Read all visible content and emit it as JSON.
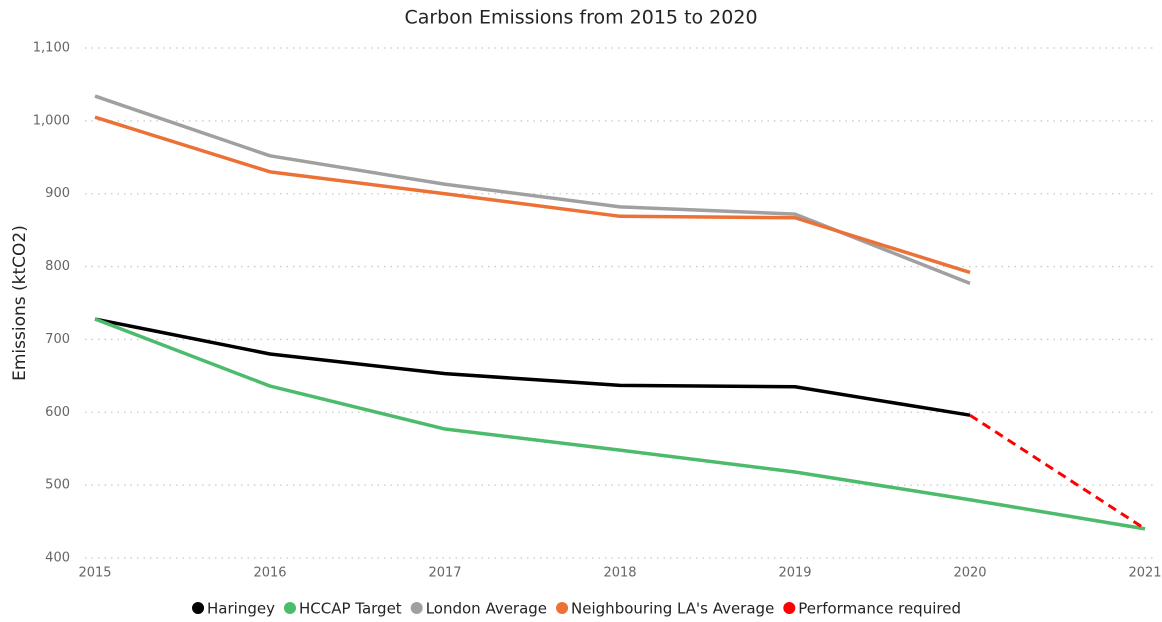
{
  "chart_data": {
    "type": "line",
    "title": "Carbon Emissions from 2015 to 2020",
    "ylabel": "Emissions (ktCO2)",
    "x": [
      2015,
      2016,
      2017,
      2018,
      2019,
      2020,
      2021
    ],
    "xlim": [
      2015,
      2021
    ],
    "xticks": [
      2015,
      2016,
      2017,
      2018,
      2019,
      2020,
      2021
    ],
    "ylim": [
      400,
      1100
    ],
    "yticks": [
      400,
      500,
      600,
      700,
      800,
      900,
      {
        "value": 1000,
        "label": "1,000"
      },
      {
        "value": 1100,
        "label": "1,100"
      }
    ],
    "grid": true,
    "legend": "bottom",
    "series": [
      {
        "name": "Haringey",
        "color": "#000000",
        "values": [
          728,
          680,
          653,
          637,
          635,
          596,
          null
        ]
      },
      {
        "name": "HCCAP Target",
        "color": "#4cbb6c",
        "values": [
          728,
          636,
          577,
          548,
          518,
          480,
          440
        ]
      },
      {
        "name": "London Average",
        "color": "#a0a0a0",
        "values": [
          1034,
          952,
          913,
          882,
          872,
          777,
          null
        ]
      },
      {
        "name": "Neighbouring LA's Average",
        "color": "#eb7137",
        "values": [
          1005,
          930,
          900,
          869,
          867,
          792,
          null
        ]
      },
      {
        "name": "Performance required",
        "color": "#ff0000",
        "dashed": true,
        "values": [
          null,
          null,
          null,
          null,
          null,
          596,
          440
        ]
      }
    ]
  }
}
